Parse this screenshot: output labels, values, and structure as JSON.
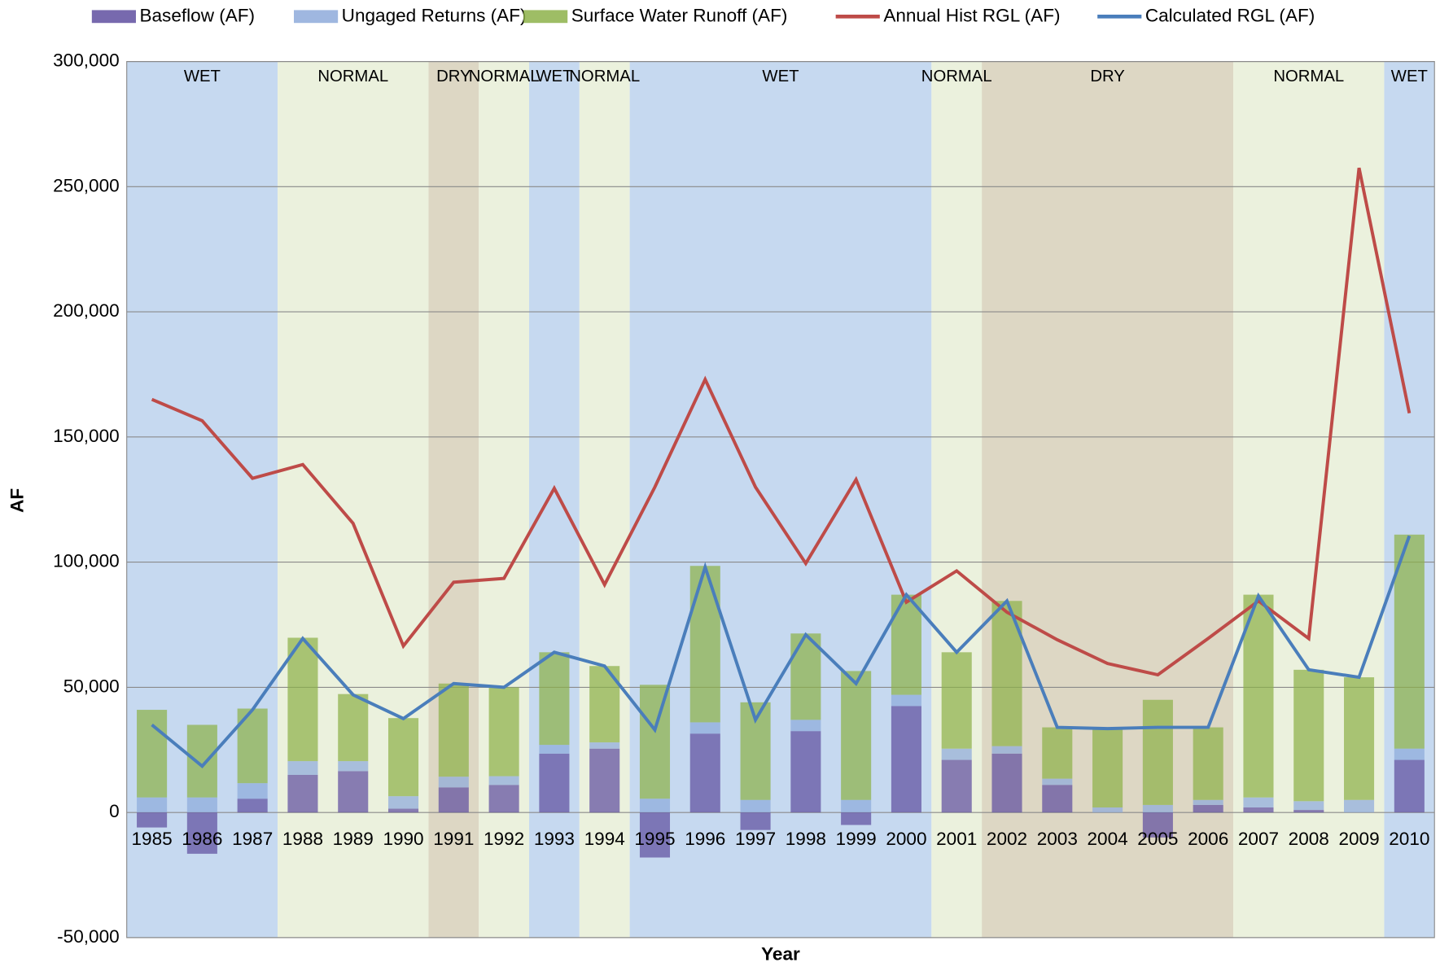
{
  "chart_data": {
    "type": "stacked-bar-line",
    "x_label": "Year",
    "y_label": "AF",
    "categories": [
      "1985",
      "1986",
      "1987",
      "1988",
      "1989",
      "1990",
      "1991",
      "1992",
      "1993",
      "1994",
      "1995",
      "1996",
      "1997",
      "1998",
      "1999",
      "2000",
      "2001",
      "2002",
      "2003",
      "2004",
      "2005",
      "2006",
      "2007",
      "2008",
      "2009",
      "2010"
    ],
    "ylim": [
      -50000,
      300000
    ],
    "yticks": [
      {
        "value": -50000,
        "label": "-50,000"
      },
      {
        "value": 0,
        "label": "0"
      },
      {
        "value": 50000,
        "label": "50,000"
      },
      {
        "value": 100000,
        "label": "100,000"
      },
      {
        "value": 150000,
        "label": "150,000"
      },
      {
        "value": 200000,
        "label": "200,000"
      },
      {
        "value": 250000,
        "label": "250,000"
      },
      {
        "value": 300000,
        "label": "300,000"
      }
    ],
    "grid": true,
    "legend": "top",
    "periods": [
      {
        "label": "WET",
        "from": "1985",
        "to": "1987"
      },
      {
        "label": "NORMAL",
        "from": "1988",
        "to": "1990"
      },
      {
        "label": "DRY",
        "from": "1991",
        "to": "1991"
      },
      {
        "label": "NORMAL",
        "from": "1992",
        "to": "1992"
      },
      {
        "label": "WET",
        "from": "1993",
        "to": "1993"
      },
      {
        "label": "NORMAL",
        "from": "1994",
        "to": "1994"
      },
      {
        "label": "WET",
        "from": "1995",
        "to": "2000"
      },
      {
        "label": "NORMAL",
        "from": "2001",
        "to": "2001"
      },
      {
        "label": "DRY",
        "from": "2002",
        "to": "2006"
      },
      {
        "label": "NORMAL",
        "from": "2007",
        "to": "2009"
      },
      {
        "label": "WET",
        "from": "2010",
        "to": "2010"
      }
    ],
    "period_colors": {
      "WET": "#c6d9f0",
      "NORMAL": "#ebf1dd",
      "DRY": "#ddd7c4"
    },
    "series": [
      {
        "name": "Baseflow (AF)",
        "kind": "bar",
        "color": "#5f4fa0",
        "values": [
          -6000,
          -16500,
          5500,
          15000,
          16500,
          1500,
          10000,
          11000,
          23500,
          25500,
          -18000,
          31500,
          -7000,
          32500,
          -5000,
          42500,
          21000,
          23500,
          11000,
          0,
          -10000,
          3000,
          2000,
          1000,
          0,
          21000
        ]
      },
      {
        "name": "Ungaged Returns (AF)",
        "kind": "bar",
        "color": "#8eaadb",
        "values": [
          6000,
          6000,
          6200,
          5500,
          4000,
          5000,
          4300,
          3500,
          3500,
          2500,
          5500,
          4500,
          5000,
          4500,
          5000,
          4500,
          4500,
          3000,
          2500,
          2000,
          3000,
          2000,
          4000,
          3500,
          5000,
          4500
        ]
      },
      {
        "name": "Surface Water Runoff (AF)",
        "kind": "bar",
        "color": "#8db24a",
        "values": [
          35000,
          29000,
          29800,
          49300,
          26800,
          31200,
          37200,
          35500,
          37000,
          30500,
          45500,
          62500,
          39000,
          34500,
          51500,
          40000,
          38500,
          58000,
          20500,
          31500,
          42000,
          29000,
          81000,
          52500,
          49000,
          85500
        ]
      },
      {
        "name": "Annual Hist RGL (AF)",
        "kind": "line",
        "color": "#be4b48",
        "values": [
          165000,
          156500,
          133500,
          139000,
          115500,
          66500,
          92000,
          93500,
          129500,
          91000,
          130000,
          173000,
          130000,
          99500,
          133000,
          84000,
          96500,
          80000,
          69000,
          59500,
          55000,
          69500,
          84500,
          69500,
          257500,
          159500
        ]
      },
      {
        "name": "Calculated RGL (AF)",
        "kind": "line",
        "color": "#4a7ebb",
        "values": [
          35000,
          18500,
          41000,
          69500,
          47000,
          37500,
          51500,
          50000,
          64000,
          58500,
          33000,
          98000,
          37000,
          71000,
          51500,
          87000,
          64000,
          84500,
          34000,
          33500,
          34000,
          34000,
          86500,
          57000,
          54000,
          110500
        ]
      }
    ]
  }
}
